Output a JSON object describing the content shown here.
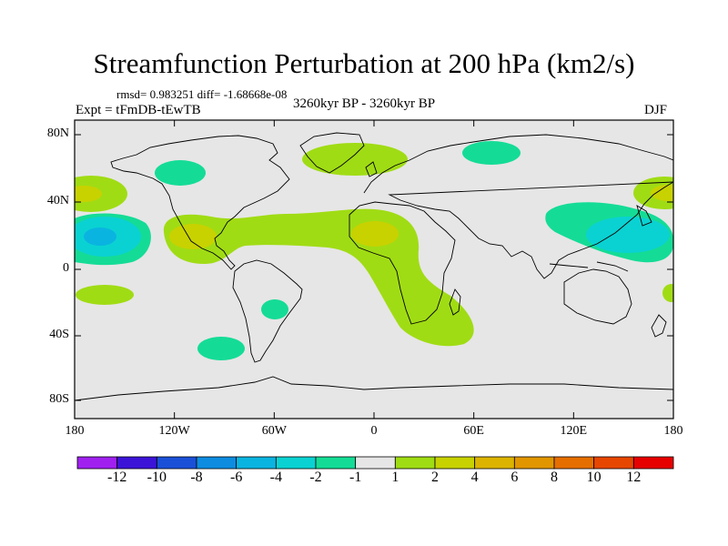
{
  "title": "Streamfunction Perturbation at 200 hPa (km2/s)",
  "stats": "rmsd= 0.983251  diff= -1.68668e-08",
  "experiment": "Expt = tFmDB-tEwTB",
  "period": "3260kyr BP - 3260kyr BP",
  "season": "DJF",
  "map": {
    "projection": "cylindrical equidistant",
    "lon_ticks": [
      "180",
      "120W",
      "60W",
      "0",
      "60E",
      "120E",
      "180"
    ],
    "lat_ticks": [
      "80N",
      "40N",
      "0",
      "40S",
      "80S"
    ],
    "background_color": "#e6e6e6",
    "coastline_color": "#000000"
  },
  "colorbar": {
    "colors": [
      "#a020f0",
      "#3c14d8",
      "#1a50d8",
      "#0d8ce0",
      "#0ab4e0",
      "#0ad2d2",
      "#14dc96",
      "#e6e6e6",
      "#a0dc14",
      "#c8d200",
      "#dcb400",
      "#e19600",
      "#e66e00",
      "#e64600",
      "#e60000"
    ],
    "labels": [
      "-12",
      "-10",
      "-8",
      "-6",
      "-4",
      "-2",
      "-1",
      "1",
      "2",
      "4",
      "6",
      "8",
      "10",
      "12"
    ]
  }
}
